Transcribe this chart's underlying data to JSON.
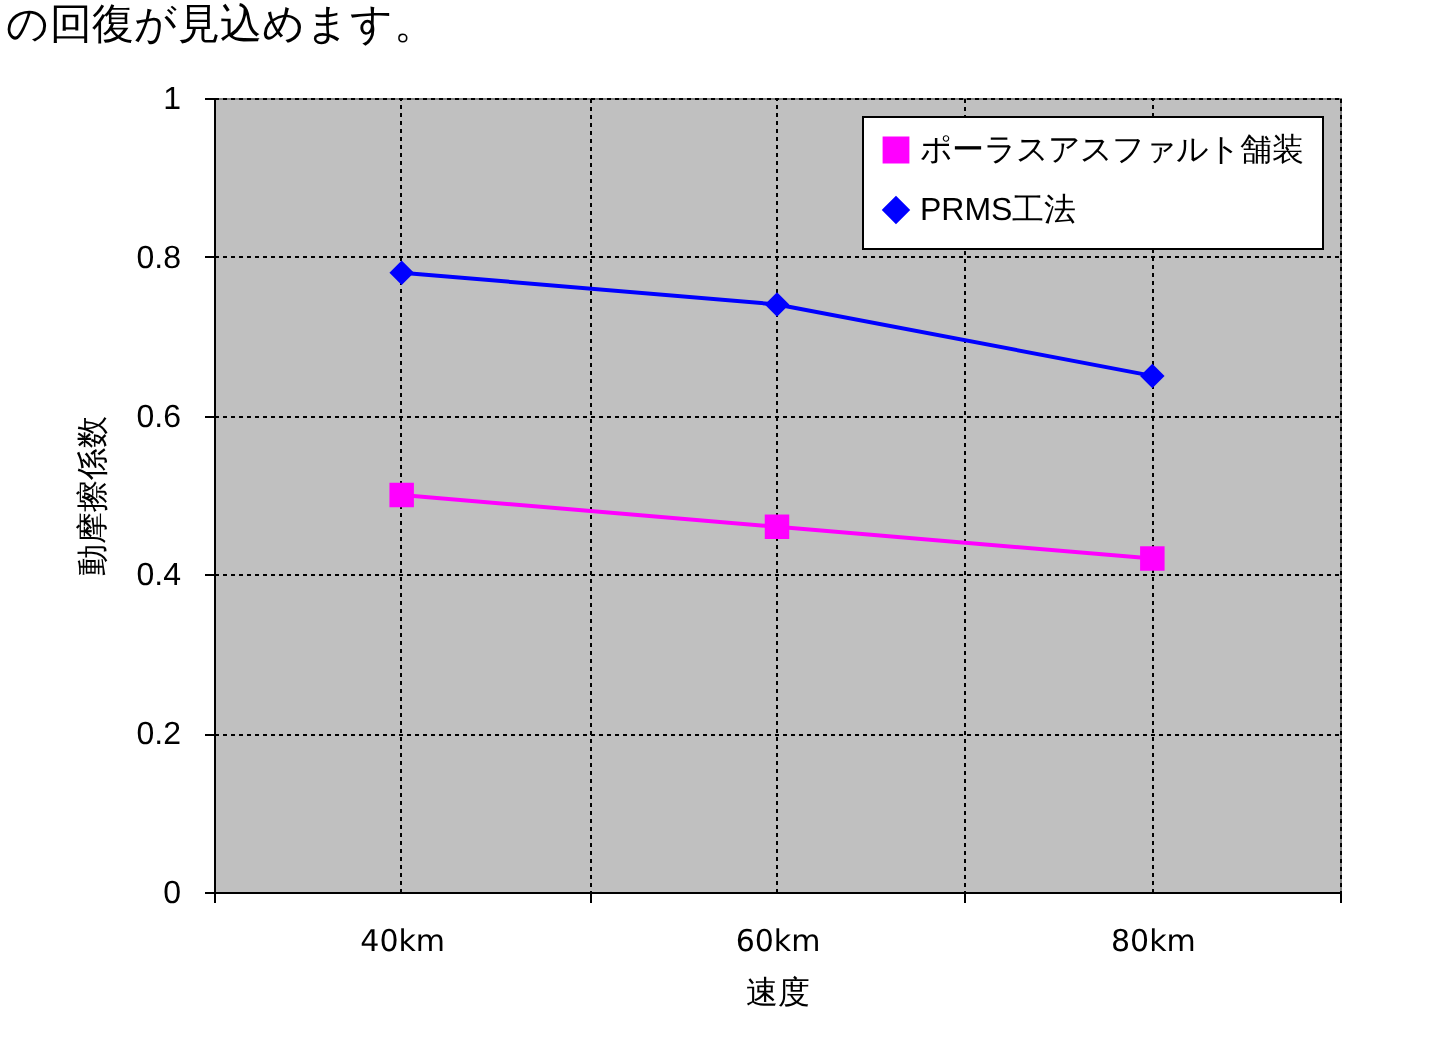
{
  "chart_data": {
    "type": "line",
    "annotations": [
      "の回復が見込めます。"
    ],
    "xlabel": "速度",
    "ylabel": "動摩擦係数",
    "categories": [
      "40km",
      "60km",
      "80km"
    ],
    "series": [
      {
        "name": "ポーラスアスファルト舗装",
        "color": "#ff00ff",
        "marker": "square",
        "values": [
          0.5,
          0.46,
          0.42
        ]
      },
      {
        "name": "PRMS工法",
        "color": "#0000ff",
        "marker": "diamond",
        "values": [
          0.78,
          0.74,
          0.65
        ]
      }
    ],
    "ylim": [
      0,
      1
    ],
    "yticks": [
      0,
      0.2,
      0.4,
      0.6,
      0.8,
      1
    ],
    "grid": true,
    "legend": "top right",
    "line_style": "solid"
  }
}
